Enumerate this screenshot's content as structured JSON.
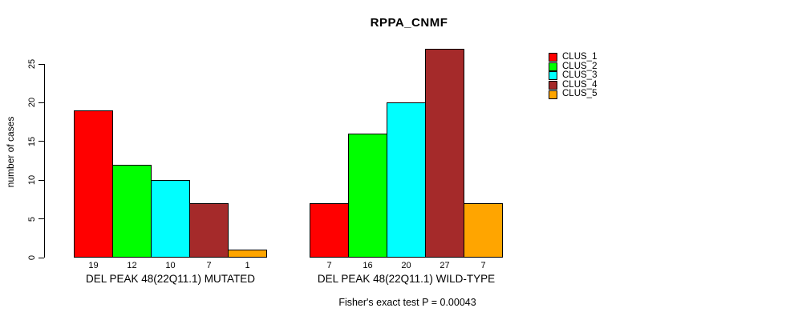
{
  "title": "RPPA_CNMF",
  "y_axis": {
    "label": "number of cases",
    "ticks": [
      0,
      5,
      10,
      15,
      20,
      25
    ]
  },
  "footer": "Fisher's exact test P = 0.00043",
  "legend": {
    "items": [
      {
        "label": "CLUS_1",
        "color": "#FF0000"
      },
      {
        "label": "CLUS_2",
        "color": "#00FF00"
      },
      {
        "label": "CLUS_3",
        "color": "#00FFFF"
      },
      {
        "label": "CLUS_4",
        "color": "#A52A2A"
      },
      {
        "label": "CLUS_5",
        "color": "#FFA500"
      }
    ]
  },
  "chart_data": {
    "type": "bar",
    "title": "RPPA_CNMF",
    "ylabel": "number of cases",
    "ylim": [
      0,
      27
    ],
    "yticks": [
      0,
      5,
      10,
      15,
      20,
      25
    ],
    "grid": false,
    "legend_position": "right",
    "series": [
      "CLUS_1",
      "CLUS_2",
      "CLUS_3",
      "CLUS_4",
      "CLUS_5"
    ],
    "colors": [
      "#FF0000",
      "#00FF00",
      "#00FFFF",
      "#A52A2A",
      "#FFA500"
    ],
    "groups": [
      {
        "label": "DEL PEAK 48(22Q11.1) MUTATED",
        "values": [
          19,
          12,
          10,
          7,
          1
        ]
      },
      {
        "label": "DEL PEAK 48(22Q11.1) WILD-TYPE",
        "values": [
          7,
          16,
          20,
          27,
          7
        ]
      }
    ],
    "annotation": "Fisher's exact test P = 0.00043"
  }
}
